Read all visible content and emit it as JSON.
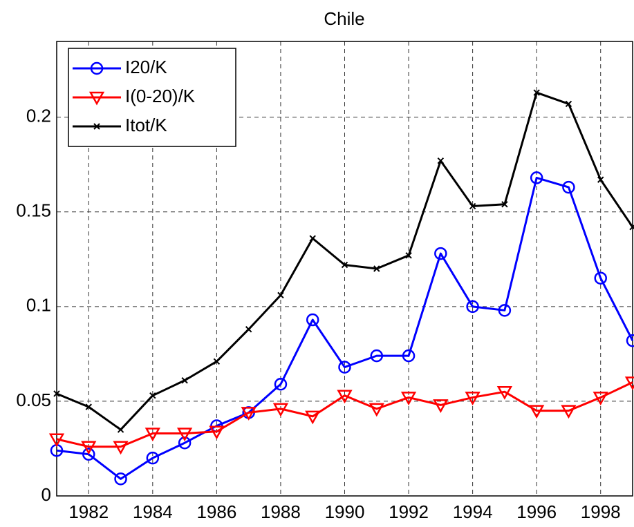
{
  "chart_data": {
    "type": "line",
    "title": "Chile",
    "x": [
      1981,
      1982,
      1983,
      1984,
      1985,
      1986,
      1987,
      1988,
      1989,
      1990,
      1991,
      1992,
      1993,
      1994,
      1995,
      1996,
      1997,
      1998,
      1999
    ],
    "series": [
      {
        "name": "I20/K",
        "color": "#0000ff",
        "marker": "o",
        "values": [
          0.024,
          0.022,
          0.009,
          0.02,
          0.028,
          0.037,
          0.044,
          0.059,
          0.093,
          0.068,
          0.074,
          0.074,
          0.128,
          0.1,
          0.098,
          0.168,
          0.163,
          0.115,
          0.082
        ]
      },
      {
        "name": "I(0-20)/K",
        "color": "#ff0000",
        "marker": "v",
        "values": [
          0.03,
          0.026,
          0.026,
          0.033,
          0.033,
          0.034,
          0.044,
          0.046,
          0.042,
          0.053,
          0.046,
          0.052,
          0.048,
          0.052,
          0.055,
          0.045,
          0.045,
          0.052,
          0.06
        ]
      },
      {
        "name": "Itot/K",
        "color": "#000000",
        "marker": "x",
        "values": [
          0.054,
          0.047,
          0.035,
          0.053,
          0.061,
          0.071,
          0.088,
          0.106,
          0.136,
          0.122,
          0.12,
          0.127,
          0.177,
          0.153,
          0.154,
          0.213,
          0.207,
          0.167,
          0.142
        ]
      }
    ],
    "xlim": [
      1981,
      1999
    ],
    "xticks": [
      1982,
      1984,
      1986,
      1988,
      1990,
      1992,
      1994,
      1996,
      1998
    ],
    "ylim": [
      0,
      0.24
    ],
    "yticks": [
      0,
      0.05,
      0.1,
      0.15,
      0.2
    ],
    "grid": true,
    "legend": "upper left"
  }
}
